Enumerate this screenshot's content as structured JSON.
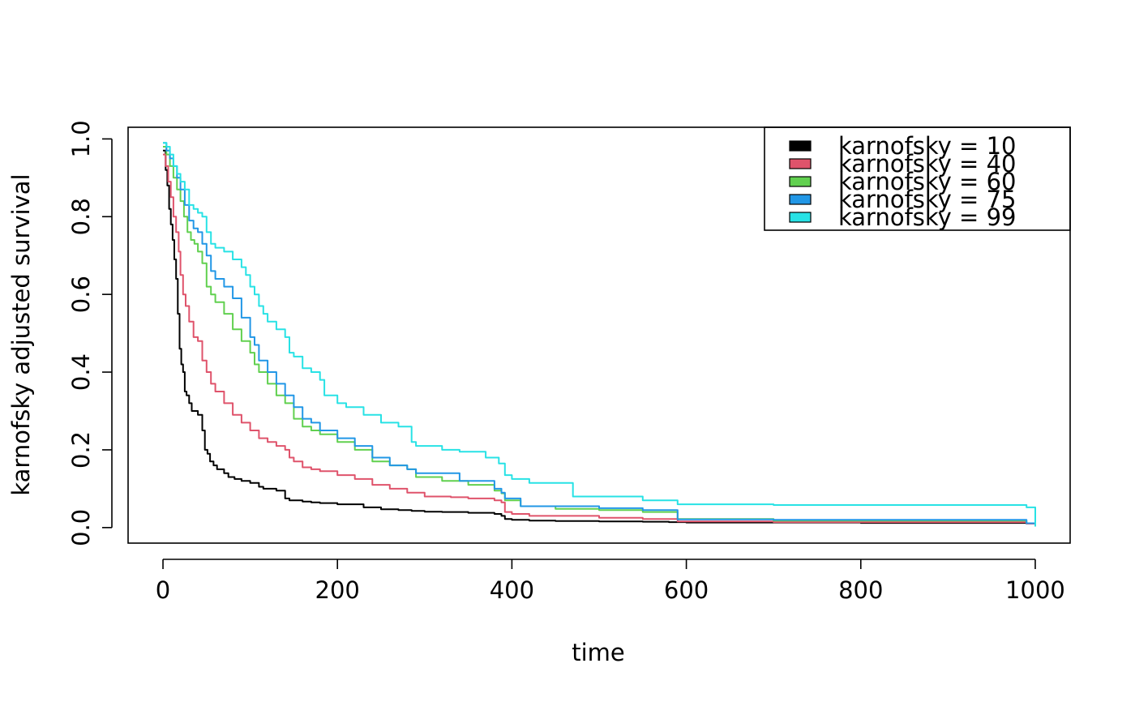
{
  "chart_data": {
    "type": "line",
    "title": "",
    "xlabel": "time",
    "ylabel": "karnofsky adjusted survival",
    "xlim": [
      -40,
      1040
    ],
    "ylim": [
      -0.04,
      1.03
    ],
    "xticks": [
      0,
      200,
      400,
      600,
      800,
      1000
    ],
    "xtick_labels": [
      "0",
      "200",
      "400",
      "600",
      "800",
      "1000"
    ],
    "yticks": [
      0.0,
      0.2,
      0.4,
      0.6,
      0.8,
      1.0
    ],
    "ytick_labels": [
      "0.0",
      "0.2",
      "0.4",
      "0.6",
      "0.8",
      "1.0"
    ],
    "grid": false,
    "legend_position": "top-right",
    "step": true,
    "series": [
      {
        "name": "karnofsky = 10",
        "color": "#000000",
        "x": [
          0,
          3,
          5,
          7,
          9,
          11,
          13,
          15,
          17,
          19,
          21,
          23,
          25,
          27,
          30,
          33,
          36,
          40,
          45,
          48,
          51,
          54,
          58,
          62,
          70,
          75,
          82,
          90,
          100,
          110,
          115,
          120,
          130,
          140,
          145,
          160,
          170,
          180,
          200,
          230,
          250,
          270,
          285,
          300,
          320,
          350,
          380,
          388,
          392,
          400,
          420,
          450,
          500,
          550,
          580,
          600,
          800,
          990,
          1000
        ],
        "y": [
          0.97,
          0.92,
          0.88,
          0.82,
          0.78,
          0.74,
          0.69,
          0.64,
          0.55,
          0.46,
          0.42,
          0.4,
          0.35,
          0.34,
          0.32,
          0.3,
          0.3,
          0.29,
          0.25,
          0.2,
          0.19,
          0.17,
          0.16,
          0.15,
          0.14,
          0.13,
          0.125,
          0.12,
          0.115,
          0.105,
          0.1,
          0.1,
          0.095,
          0.075,
          0.07,
          0.067,
          0.065,
          0.063,
          0.06,
          0.052,
          0.047,
          0.045,
          0.043,
          0.041,
          0.04,
          0.038,
          0.035,
          0.03,
          0.022,
          0.02,
          0.018,
          0.017,
          0.016,
          0.015,
          0.014,
          0.013,
          0.012,
          0.01,
          0.003
        ]
      },
      {
        "name": "karnofsky = 40",
        "color": "#DF536B",
        "x": [
          0,
          3,
          6,
          9,
          12,
          15,
          18,
          20,
          23,
          26,
          30,
          35,
          40,
          45,
          50,
          55,
          60,
          70,
          80,
          90,
          100,
          110,
          120,
          130,
          140,
          145,
          150,
          160,
          170,
          180,
          200,
          220,
          240,
          260,
          280,
          300,
          330,
          350,
          380,
          388,
          392,
          400,
          420,
          500,
          550,
          590,
          700,
          990,
          1000
        ],
        "y": [
          0.96,
          0.93,
          0.89,
          0.85,
          0.8,
          0.76,
          0.71,
          0.65,
          0.6,
          0.57,
          0.53,
          0.49,
          0.48,
          0.43,
          0.4,
          0.37,
          0.35,
          0.32,
          0.29,
          0.27,
          0.25,
          0.23,
          0.22,
          0.21,
          0.2,
          0.18,
          0.17,
          0.155,
          0.15,
          0.145,
          0.135,
          0.125,
          0.11,
          0.1,
          0.09,
          0.08,
          0.078,
          0.075,
          0.07,
          0.065,
          0.04,
          0.035,
          0.03,
          0.025,
          0.022,
          0.016,
          0.014,
          0.01,
          0.003
        ]
      },
      {
        "name": "karnofsky = 60",
        "color": "#61D04F",
        "x": [
          0,
          4,
          8,
          12,
          16,
          20,
          24,
          28,
          32,
          36,
          40,
          45,
          50,
          55,
          60,
          70,
          80,
          90,
          100,
          105,
          110,
          120,
          130,
          140,
          150,
          160,
          170,
          180,
          200,
          220,
          240,
          260,
          280,
          290,
          320,
          350,
          380,
          388,
          392,
          410,
          450,
          500,
          550,
          590,
          700,
          990,
          1000
        ],
        "y": [
          0.98,
          0.96,
          0.93,
          0.9,
          0.87,
          0.84,
          0.8,
          0.76,
          0.74,
          0.73,
          0.71,
          0.68,
          0.62,
          0.6,
          0.58,
          0.55,
          0.51,
          0.48,
          0.45,
          0.42,
          0.4,
          0.37,
          0.34,
          0.32,
          0.28,
          0.26,
          0.25,
          0.24,
          0.22,
          0.2,
          0.17,
          0.16,
          0.15,
          0.13,
          0.12,
          0.11,
          0.095,
          0.088,
          0.07,
          0.055,
          0.048,
          0.045,
          0.04,
          0.022,
          0.018,
          0.011,
          0.004
        ]
      },
      {
        "name": "karnofsky = 75",
        "color": "#2297E6",
        "x": [
          0,
          4,
          8,
          12,
          16,
          20,
          25,
          30,
          35,
          40,
          45,
          50,
          55,
          60,
          70,
          80,
          90,
          100,
          105,
          110,
          120,
          130,
          140,
          150,
          160,
          170,
          180,
          200,
          220,
          240,
          260,
          280,
          290,
          340,
          380,
          388,
          392,
          410,
          500,
          550,
          590,
          700,
          990,
          1000
        ],
        "y": [
          0.99,
          0.97,
          0.95,
          0.93,
          0.9,
          0.87,
          0.83,
          0.79,
          0.77,
          0.76,
          0.73,
          0.7,
          0.66,
          0.64,
          0.62,
          0.59,
          0.54,
          0.49,
          0.47,
          0.43,
          0.4,
          0.37,
          0.34,
          0.31,
          0.28,
          0.27,
          0.25,
          0.23,
          0.21,
          0.18,
          0.16,
          0.15,
          0.14,
          0.12,
          0.1,
          0.09,
          0.075,
          0.055,
          0.05,
          0.045,
          0.021,
          0.02,
          0.011,
          0.003
        ]
      },
      {
        "name": "karnofsky = 99",
        "color": "#28E2E5",
        "x": [
          0,
          4,
          8,
          12,
          16,
          20,
          25,
          30,
          35,
          40,
          45,
          50,
          55,
          60,
          70,
          80,
          90,
          95,
          100,
          105,
          110,
          115,
          120,
          130,
          140,
          145,
          150,
          160,
          170,
          180,
          185,
          200,
          210,
          230,
          250,
          270,
          285,
          290,
          320,
          340,
          370,
          385,
          392,
          400,
          420,
          470,
          550,
          590,
          700,
          990,
          1000
        ],
        "y": [
          0.99,
          0.98,
          0.96,
          0.93,
          0.91,
          0.89,
          0.87,
          0.83,
          0.82,
          0.81,
          0.8,
          0.76,
          0.73,
          0.72,
          0.71,
          0.69,
          0.67,
          0.65,
          0.62,
          0.6,
          0.57,
          0.55,
          0.53,
          0.51,
          0.49,
          0.45,
          0.44,
          0.41,
          0.4,
          0.38,
          0.34,
          0.32,
          0.31,
          0.29,
          0.27,
          0.26,
          0.22,
          0.21,
          0.2,
          0.195,
          0.18,
          0.165,
          0.135,
          0.125,
          0.115,
          0.08,
          0.07,
          0.06,
          0.058,
          0.052,
          0.003
        ]
      }
    ]
  }
}
